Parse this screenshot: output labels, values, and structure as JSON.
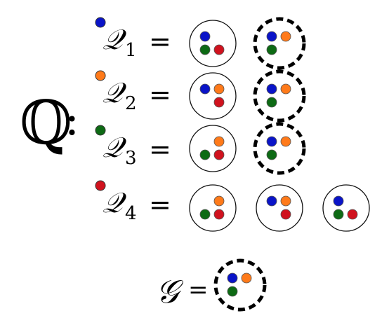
{
  "set_symbol": "ℚ",
  "set_colon": ":",
  "colors": {
    "blue": "#0a14c8",
    "orange": "#ff7a1a",
    "green": "#0d6a14",
    "red": "#d0121e"
  },
  "rows": [
    {
      "marker": "blue",
      "symbol": "𝒬",
      "subscript": "1",
      "equals": "=",
      "sets": [
        {
          "style": "solid",
          "dots": [
            "blue",
            "green",
            "red"
          ]
        },
        {
          "style": "dashed",
          "dots": [
            "blue",
            "orange",
            "green"
          ]
        }
      ]
    },
    {
      "marker": "orange",
      "symbol": "𝒬",
      "subscript": "2",
      "equals": "=",
      "sets": [
        {
          "style": "solid",
          "dots": [
            "blue",
            "orange",
            "red"
          ]
        },
        {
          "style": "dashed",
          "dots": [
            "blue",
            "orange",
            "green"
          ]
        }
      ]
    },
    {
      "marker": "green",
      "symbol": "𝒬",
      "subscript": "3",
      "equals": "=",
      "sets": [
        {
          "style": "solid",
          "dots": [
            "orange",
            "green",
            "red"
          ]
        },
        {
          "style": "dashed",
          "dots": [
            "blue",
            "orange",
            "green"
          ]
        }
      ]
    },
    {
      "marker": "red",
      "symbol": "𝒬",
      "subscript": "4",
      "equals": "=",
      "sets": [
        {
          "style": "solid",
          "dots": [
            "orange",
            "green",
            "red"
          ]
        },
        {
          "style": "solid",
          "dots": [
            "blue",
            "orange",
            "red"
          ]
        },
        {
          "style": "solid",
          "dots": [
            "blue",
            "green",
            "red"
          ]
        }
      ]
    }
  ],
  "goal": {
    "symbol": "𝒢",
    "equals": "=",
    "set": {
      "style": "dashed",
      "dots": [
        "blue",
        "orange",
        "green"
      ]
    }
  }
}
